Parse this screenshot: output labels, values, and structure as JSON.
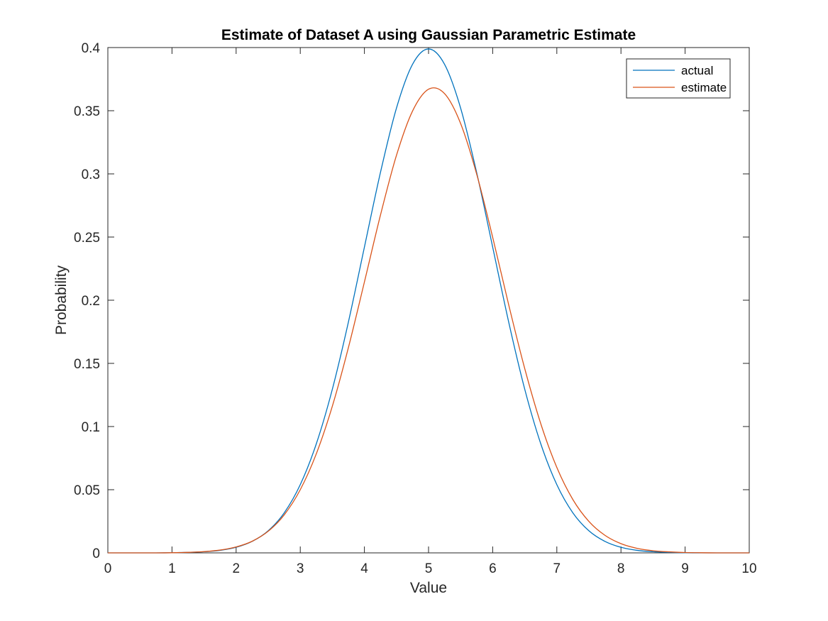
{
  "chart_data": {
    "type": "line",
    "title": "Estimate of Dataset A using Gaussian Parametric Estimate",
    "xlabel": "Value",
    "ylabel": "Probability",
    "xlim": [
      0,
      10
    ],
    "ylim": [
      0,
      0.4
    ],
    "xticks": [
      0,
      1,
      2,
      3,
      4,
      5,
      6,
      7,
      8,
      9,
      10
    ],
    "yticks": [
      0,
      0.05,
      0.1,
      0.15,
      0.2,
      0.25,
      0.3,
      0.35,
      0.4
    ],
    "grid": false,
    "legend_position": "top-right",
    "series": [
      {
        "name": "actual",
        "color": "#0072BD",
        "x": [
          0,
          0.25,
          0.5,
          0.75,
          1,
          1.25,
          1.5,
          1.75,
          2,
          2.25,
          2.5,
          2.75,
          3,
          3.25,
          3.5,
          3.75,
          4,
          4.25,
          4.5,
          4.75,
          5,
          5.25,
          5.5,
          5.75,
          6,
          6.25,
          6.5,
          6.75,
          7,
          7.25,
          7.5,
          7.75,
          8,
          8.25,
          8.5,
          8.75,
          9,
          9.25,
          9.5,
          9.75,
          10
        ],
        "y": [
          0.0,
          0.0,
          0.0,
          0.0,
          0.0001,
          0.0004,
          0.0009,
          0.002,
          0.0044,
          0.0091,
          0.0175,
          0.0317,
          0.054,
          0.0863,
          0.1295,
          0.1826,
          0.242,
          0.3011,
          0.3521,
          0.3867,
          0.3989,
          0.3867,
          0.3521,
          0.3011,
          0.242,
          0.1826,
          0.1295,
          0.0863,
          0.054,
          0.0317,
          0.0175,
          0.0091,
          0.0044,
          0.002,
          0.0009,
          0.0004,
          0.0001,
          0.0,
          0.0,
          0.0,
          0.0
        ]
      },
      {
        "name": "estimate",
        "color": "#D95319",
        "x": [
          0,
          0.25,
          0.5,
          0.75,
          1,
          1.25,
          1.5,
          1.75,
          2,
          2.25,
          2.5,
          2.75,
          3,
          3.25,
          3.5,
          3.75,
          4,
          4.25,
          4.5,
          4.75,
          5,
          5.25,
          5.5,
          5.75,
          6,
          6.25,
          6.5,
          6.75,
          7,
          7.25,
          7.5,
          7.75,
          8,
          8.25,
          8.5,
          8.75,
          9,
          9.25,
          9.5,
          9.75,
          10
        ],
        "y": [
          0.0,
          0.0,
          0.0,
          0.0,
          0.0001,
          0.0004,
          0.001,
          0.0022,
          0.0047,
          0.0092,
          0.0171,
          0.0301,
          0.05,
          0.0784,
          0.1161,
          0.1624,
          0.2144,
          0.2673,
          0.3147,
          0.3497,
          0.367,
          0.3635,
          0.3399,
          0.2999,
          0.2498,
          0.1963,
          0.1458,
          0.1022,
          0.0676,
          0.0422,
          0.0249,
          0.0139,
          0.0073,
          0.0036,
          0.0017,
          0.0008,
          0.0003,
          0.0001,
          0.0,
          0.0,
          0.0
        ]
      }
    ]
  }
}
